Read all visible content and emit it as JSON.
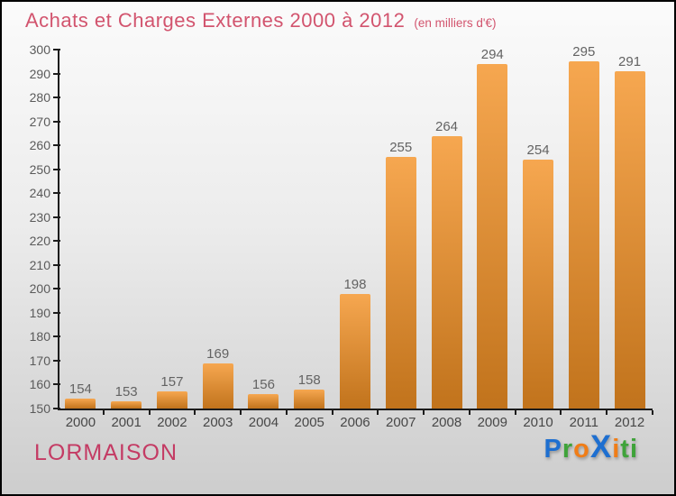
{
  "header": {
    "title": "Achats et Charges Externes 2000 à 2012",
    "subtitle": "(en milliers d'€)"
  },
  "footer": {
    "company": "LORMAISON",
    "logo": {
      "name": "Proxiti",
      "letters": [
        {
          "ch": "P",
          "color": "#1e6fd0"
        },
        {
          "ch": "r",
          "color": "#3fa33a"
        },
        {
          "ch": "o",
          "color": "#f07d17"
        },
        {
          "ch": "X",
          "color": "#1e6fd0"
        },
        {
          "ch": "i",
          "color": "#f07d17"
        },
        {
          "ch": "t",
          "color": "#3fa33a"
        },
        {
          "ch": "i",
          "color": "#3fa33a"
        }
      ]
    }
  },
  "colors": {
    "title_pink": "#d2546e",
    "company_pink": "#c43b64",
    "bar_top": "#f6a750",
    "bar_bottom": "#c1731c",
    "axis": "#1c1c1c"
  },
  "chart_data": {
    "type": "bar",
    "title": "Achats et Charges Externes 2000 à 2012",
    "subtitle": "(en milliers d'€)",
    "categories": [
      "2000",
      "2001",
      "2002",
      "2003",
      "2004",
      "2005",
      "2006",
      "2007",
      "2008",
      "2009",
      "2010",
      "2011",
      "2012"
    ],
    "values": [
      154,
      153,
      157,
      169,
      156,
      158,
      198,
      255,
      264,
      294,
      254,
      295,
      291
    ],
    "ylim": [
      150,
      300
    ],
    "ytick_step": 10,
    "grid": false,
    "legend": false,
    "value_labels": true,
    "xlabel": "",
    "ylabel": ""
  }
}
